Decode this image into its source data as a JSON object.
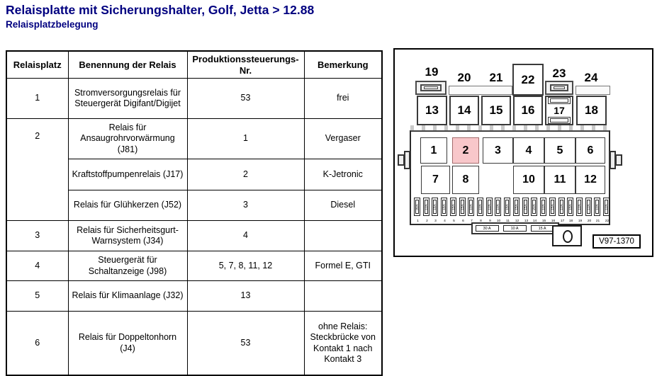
{
  "page": {
    "title": "Relaisplatte mit Sicherungshalter, Golf, Jetta > 12.88",
    "subtitle": "Relaisplatzbelegung",
    "title_color": "#000080"
  },
  "table": {
    "headers": [
      "Relaisplatz",
      "Benennung der Relais",
      "Produktionssteuerungs-Nr.",
      "Bemerkung"
    ],
    "rows": [
      {
        "relaisplatz": "1",
        "entries": [
          {
            "benennung": "Stromversorgungsrelais für Steuergerät Digifant/Digijet",
            "produktions_nr": "53",
            "bemerkung": "frei"
          }
        ]
      },
      {
        "relaisplatz": "2",
        "entries": [
          {
            "benennung": "Relais für Ansaugrohrvorwärmung (J81)",
            "produktions_nr": "1",
            "bemerkung": "Vergaser"
          },
          {
            "benennung": "Kraftstoffpumpenrelais (J17)",
            "produktions_nr": "2",
            "bemerkung": "K-Jetronic"
          },
          {
            "benennung": "Relais für Glühkerzen (J52)",
            "produktions_nr": "3",
            "bemerkung": "Diesel"
          }
        ]
      },
      {
        "relaisplatz": "3",
        "entries": [
          {
            "benennung": "Relais für Sicherheitsgurt-Warnsystem (J34)",
            "produktions_nr": "4",
            "bemerkung": ""
          }
        ]
      },
      {
        "relaisplatz": "4",
        "entries": [
          {
            "benennung": "Steuergerät für Schaltanzeige (J98)",
            "produktions_nr": "5, 7, 8, 11, 12",
            "bemerkung": "Formel E, GTI"
          }
        ]
      },
      {
        "relaisplatz": "5",
        "entries": [
          {
            "benennung": "Relais für Klimaanlage (J32)",
            "produktions_nr": "13",
            "bemerkung": ""
          }
        ]
      },
      {
        "relaisplatz": "6",
        "entries": [
          {
            "benennung": "Relais für Doppeltonhorn (J4)",
            "produktions_nr": "53",
            "bemerkung": "ohne Relais: Steckbrücke von Kontakt 1 nach Kontakt 3"
          }
        ]
      }
    ]
  },
  "diagram": {
    "code": "V97-1370",
    "top_positions": [
      "19",
      "20",
      "21",
      "22",
      "23",
      "24"
    ],
    "upper_relay_positions": [
      "13",
      "14",
      "15",
      "16",
      "17",
      "18"
    ],
    "main_row1_positions": [
      "1",
      "2",
      "3",
      "4",
      "5",
      "6"
    ],
    "main_row2_positions": [
      "7",
      "8",
      "10",
      "11",
      "12"
    ],
    "highlighted_position": "2",
    "highlight_fill": "#f8c7ca",
    "highlight_border": "#a36c6c",
    "fuse_strip": [
      {
        "nr": "1",
        "amp": "30A"
      },
      {
        "nr": "2",
        "amp": "10A"
      },
      {
        "nr": "3",
        "amp": "15A"
      },
      {
        "nr": "4",
        "amp": "15A"
      },
      {
        "nr": "5",
        "amp": "15A"
      },
      {
        "nr": "6",
        "amp": "15A"
      },
      {
        "nr": "7",
        "amp": "10A"
      },
      {
        "nr": "8",
        "amp": "10A"
      },
      {
        "nr": "9",
        "amp": "10A"
      },
      {
        "nr": "10",
        "amp": "10A"
      },
      {
        "nr": "11",
        "amp": "15A"
      },
      {
        "nr": "12",
        "amp": "15A"
      },
      {
        "nr": "13",
        "amp": "15A"
      },
      {
        "nr": "14",
        "amp": "20A"
      },
      {
        "nr": "15",
        "amp": "10A"
      },
      {
        "nr": "16",
        "amp": "15A"
      },
      {
        "nr": "17",
        "amp": "10A"
      },
      {
        "nr": "18",
        "amp": "15A"
      },
      {
        "nr": "19",
        "amp": "10A"
      },
      {
        "nr": "20",
        "amp": "10A"
      },
      {
        "nr": "21",
        "amp": "10A"
      },
      {
        "nr": "22",
        "amp": "10A"
      }
    ],
    "bottom_fuses": [
      "30 A",
      "10 A",
      "15 A"
    ]
  }
}
